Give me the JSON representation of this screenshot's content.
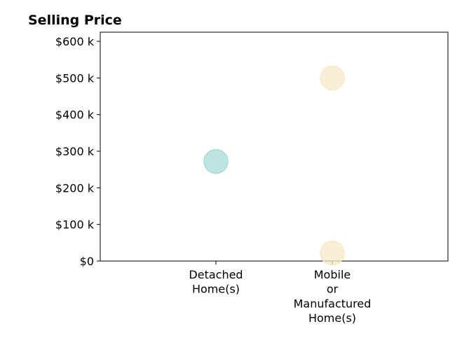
{
  "chart_data": {
    "type": "scatter",
    "title": "Selling Price",
    "xlabel": "",
    "ylabel": "",
    "categories": [
      "Detached Home(s)",
      "Mobile or Manufactured Home(s)"
    ],
    "category_label_lines": [
      [
        "Detached",
        "Home(s)"
      ],
      [
        "Mobile",
        "or",
        "Manufactured",
        "Home(s)"
      ]
    ],
    "y_ticks": [
      0,
      100000,
      200000,
      300000,
      400000,
      500000,
      600000
    ],
    "y_tick_labels": [
      "$0",
      "$100 k",
      "$200 k",
      "$300 k",
      "$400 k",
      "$500 k",
      "$600 k"
    ],
    "ylim": [
      0,
      625000
    ],
    "grid": false,
    "points": [
      {
        "category": "Detached Home(s)",
        "y": 272000,
        "color": "#a8dbd6"
      },
      {
        "category": "Mobile or Manufactured Home(s)",
        "y": 500000,
        "color": "#f8e8c8"
      },
      {
        "category": "Mobile or Manufactured Home(s)",
        "y": 22000,
        "color": "#f8e8c8"
      }
    ]
  }
}
